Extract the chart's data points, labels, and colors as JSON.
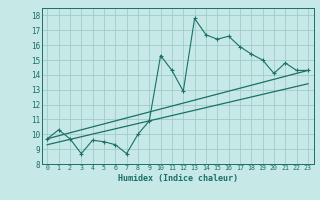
{
  "title": "",
  "xlabel": "Humidex (Indice chaleur)",
  "ylabel": "",
  "bg_color": "#c6e8e6",
  "grid_color": "#a0ccc8",
  "line_color": "#1a7068",
  "xlim": [
    -0.5,
    23.5
  ],
  "ylim": [
    8,
    18.5
  ],
  "xticks": [
    0,
    1,
    2,
    3,
    4,
    5,
    6,
    7,
    8,
    9,
    10,
    11,
    12,
    13,
    14,
    15,
    16,
    17,
    18,
    19,
    20,
    21,
    22,
    23
  ],
  "yticks": [
    8,
    9,
    10,
    11,
    12,
    13,
    14,
    15,
    16,
    17,
    18
  ],
  "line1_x": [
    0,
    1,
    2,
    3,
    4,
    5,
    6,
    7,
    8,
    9,
    10,
    11,
    12,
    13,
    14,
    15,
    16,
    17,
    18,
    19,
    20,
    21,
    22,
    23
  ],
  "line1_y": [
    9.7,
    10.3,
    9.7,
    8.7,
    9.6,
    9.5,
    9.3,
    8.7,
    10.0,
    10.9,
    15.3,
    14.3,
    12.9,
    17.8,
    16.7,
    16.4,
    16.6,
    15.9,
    15.4,
    15.0,
    14.1,
    14.8,
    14.3,
    14.3
  ],
  "line2_x": [
    0,
    23
  ],
  "line2_y": [
    9.7,
    14.3
  ],
  "line3_x": [
    0,
    23
  ],
  "line3_y": [
    9.3,
    13.4
  ]
}
